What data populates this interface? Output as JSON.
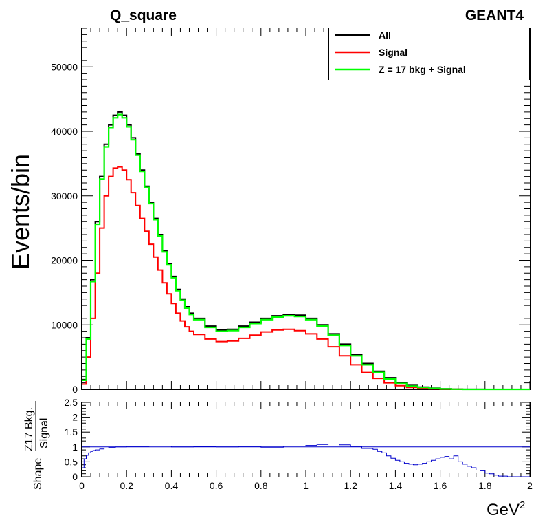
{
  "header": {
    "title": "Q_square",
    "experiment": "GEANT4"
  },
  "chart_data": [
    {
      "type": "line",
      "subtype": "step-histogram",
      "title": "Q_square",
      "xlabel": "GeV",
      "xlabel_superscript": "2",
      "ylabel": "Events/bin",
      "xlim": [
        0,
        2
      ],
      "ylim": [
        0,
        56000
      ],
      "x_ticks": [
        "0",
        "0.2",
        "0.4",
        "0.6",
        "0.8",
        "1",
        "1.2",
        "1.4",
        "1.6",
        "1.8",
        "2"
      ],
      "y_ticks": [
        "0",
        "10000",
        "20000",
        "30000",
        "40000",
        "50000"
      ],
      "legend_position": "top-right",
      "grid": false,
      "x": [
        0.0,
        0.02,
        0.04,
        0.06,
        0.08,
        0.1,
        0.12,
        0.14,
        0.16,
        0.18,
        0.2,
        0.22,
        0.24,
        0.26,
        0.28,
        0.3,
        0.32,
        0.34,
        0.36,
        0.38,
        0.4,
        0.42,
        0.44,
        0.46,
        0.48,
        0.5,
        0.55,
        0.6,
        0.65,
        0.7,
        0.75,
        0.8,
        0.85,
        0.9,
        0.95,
        1.0,
        1.05,
        1.1,
        1.15,
        1.2,
        1.25,
        1.3,
        1.35,
        1.4,
        1.45,
        1.5,
        1.55,
        1.6,
        1.65,
        1.7,
        1.8,
        1.9,
        2.0
      ],
      "series": [
        {
          "name": "All",
          "color": "#000000",
          "values": [
            1500,
            8000,
            17000,
            26000,
            33000,
            38000,
            41000,
            42500,
            43000,
            42500,
            41000,
            39000,
            36500,
            34000,
            31500,
            29000,
            26500,
            24000,
            21500,
            19500,
            17500,
            15500,
            14000,
            12800,
            11800,
            11000,
            9800,
            9200,
            9300,
            9800,
            10400,
            11000,
            11400,
            11600,
            11500,
            11000,
            10000,
            8600,
            7000,
            5400,
            4000,
            2800,
            1800,
            1000,
            600,
            350,
            180,
            80,
            30,
            10,
            0,
            0,
            0
          ]
        },
        {
          "name": "Signal",
          "color": "#ff0000",
          "values": [
            800,
            5000,
            11000,
            18000,
            25000,
            30000,
            33000,
            34300,
            34500,
            34000,
            32500,
            30500,
            28500,
            26500,
            24500,
            22500,
            20500,
            18500,
            16500,
            14800,
            13300,
            11800,
            10600,
            9700,
            9000,
            8500,
            7800,
            7400,
            7500,
            7900,
            8400,
            8900,
            9200,
            9300,
            9100,
            8600,
            7800,
            6600,
            5200,
            3800,
            2600,
            1700,
            1000,
            550,
            300,
            150,
            70,
            30,
            10,
            0,
            0,
            0,
            0
          ]
        },
        {
          "name": "Z = 17 bkg + Signal",
          "color": "#00ff00",
          "values": [
            1400,
            7800,
            16700,
            25600,
            32600,
            37600,
            40600,
            42100,
            42600,
            42100,
            40700,
            38700,
            36300,
            33800,
            31300,
            28800,
            26300,
            23800,
            21300,
            19300,
            17300,
            15300,
            13800,
            12600,
            11600,
            10800,
            9600,
            9000,
            9100,
            9600,
            10200,
            10800,
            11200,
            11400,
            11300,
            10800,
            9800,
            8400,
            6800,
            5200,
            3800,
            2600,
            1600,
            900,
            500,
            300,
            150,
            60,
            20,
            5,
            0,
            0,
            0
          ]
        }
      ]
    },
    {
      "type": "line",
      "subtype": "step-histogram-ratio",
      "ylabel_prefix": "Shape",
      "ylabel_numerator": "Z17 Bkg.",
      "ylabel_denominator": "Signal",
      "xlim": [
        0,
        2
      ],
      "ylim": [
        0,
        2.5
      ],
      "y_ticks": [
        "0",
        "0.5",
        "1",
        "1.5",
        "2",
        "2.5"
      ],
      "reference_line": 1.0,
      "color": "#0000cc",
      "x": [
        0.0,
        0.01,
        0.02,
        0.03,
        0.04,
        0.05,
        0.06,
        0.08,
        0.1,
        0.12,
        0.15,
        0.2,
        0.3,
        0.4,
        0.5,
        0.6,
        0.7,
        0.8,
        0.9,
        1.0,
        1.05,
        1.1,
        1.15,
        1.2,
        1.25,
        1.3,
        1.32,
        1.34,
        1.36,
        1.38,
        1.4,
        1.42,
        1.44,
        1.46,
        1.48,
        1.5,
        1.52,
        1.54,
        1.56,
        1.58,
        1.6,
        1.62,
        1.64,
        1.66,
        1.68,
        1.7,
        1.72,
        1.74,
        1.76,
        1.78,
        1.8,
        1.82,
        1.84,
        1.86,
        1.9,
        2.0
      ],
      "values": [
        0.3,
        0.6,
        0.72,
        0.8,
        0.85,
        0.88,
        0.9,
        0.93,
        0.96,
        0.98,
        1.0,
        1.02,
        1.03,
        1.0,
        1.01,
        1.0,
        1.02,
        0.99,
        1.03,
        1.05,
        1.08,
        1.1,
        1.07,
        1.02,
        0.95,
        0.92,
        0.85,
        0.8,
        0.7,
        0.62,
        0.55,
        0.5,
        0.45,
        0.42,
        0.4,
        0.42,
        0.45,
        0.5,
        0.55,
        0.6,
        0.65,
        0.68,
        0.6,
        0.7,
        0.5,
        0.42,
        0.35,
        0.3,
        0.22,
        0.2,
        0.12,
        0.1,
        0.05,
        0.02,
        0.0,
        0.0
      ]
    }
  ],
  "legend": {
    "items": [
      {
        "label": "All",
        "color": "#000000"
      },
      {
        "label": "Signal",
        "color": "#ff0000"
      },
      {
        "label": "Z = 17 bkg + Signal",
        "color": "#00ff00"
      }
    ]
  }
}
